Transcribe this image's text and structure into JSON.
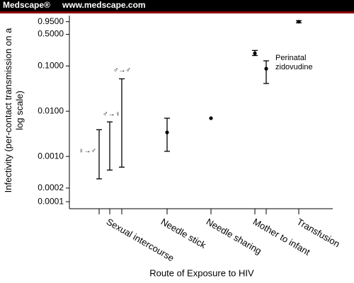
{
  "header": {
    "brand": "Medscape®",
    "url": "www.medscape.com"
  },
  "chart_data": {
    "type": "errorbar",
    "y_label": "Infectivity (per-contact transmission on a log scale)",
    "x_label": "Route of Exposure to HIV",
    "log_y": true,
    "color": "#000000",
    "categories": [
      null,
      "Sexual intercourse",
      null,
      "Needle stick",
      "Needle sharing",
      "Mother to infant",
      null,
      "Transfusion"
    ],
    "values": [
      null,
      null,
      null,
      0.0034,
      0.007,
      0.19,
      0.087,
      0.95
    ],
    "lower": [
      0.00032,
      0.0005,
      0.00058,
      0.0013,
      null,
      0.17,
      0.041,
      0.9
    ],
    "upper": [
      0.0039,
      0.0058,
      0.052,
      0.007,
      null,
      0.22,
      0.13,
      1.0
    ],
    "point_labels": [
      "♀→♂",
      "♂→♀",
      "♂→♂",
      null,
      null,
      null,
      "Perinatal zidovudine",
      null
    ],
    "ylim": [
      7e-05,
      1.3
    ],
    "yticks": [
      {
        "value": 0.95,
        "label": "0.9500"
      },
      {
        "value": 0.5,
        "label": "0.5000"
      },
      {
        "value": 0.1,
        "label": "0.1000"
      },
      {
        "value": 0.01,
        "label": "0.0100"
      },
      {
        "value": 0.001,
        "label": "0.0010"
      },
      {
        "value": 0.0002,
        "label": "0.0002"
      },
      {
        "value": 0.0001,
        "label": "0.0001"
      }
    ]
  }
}
